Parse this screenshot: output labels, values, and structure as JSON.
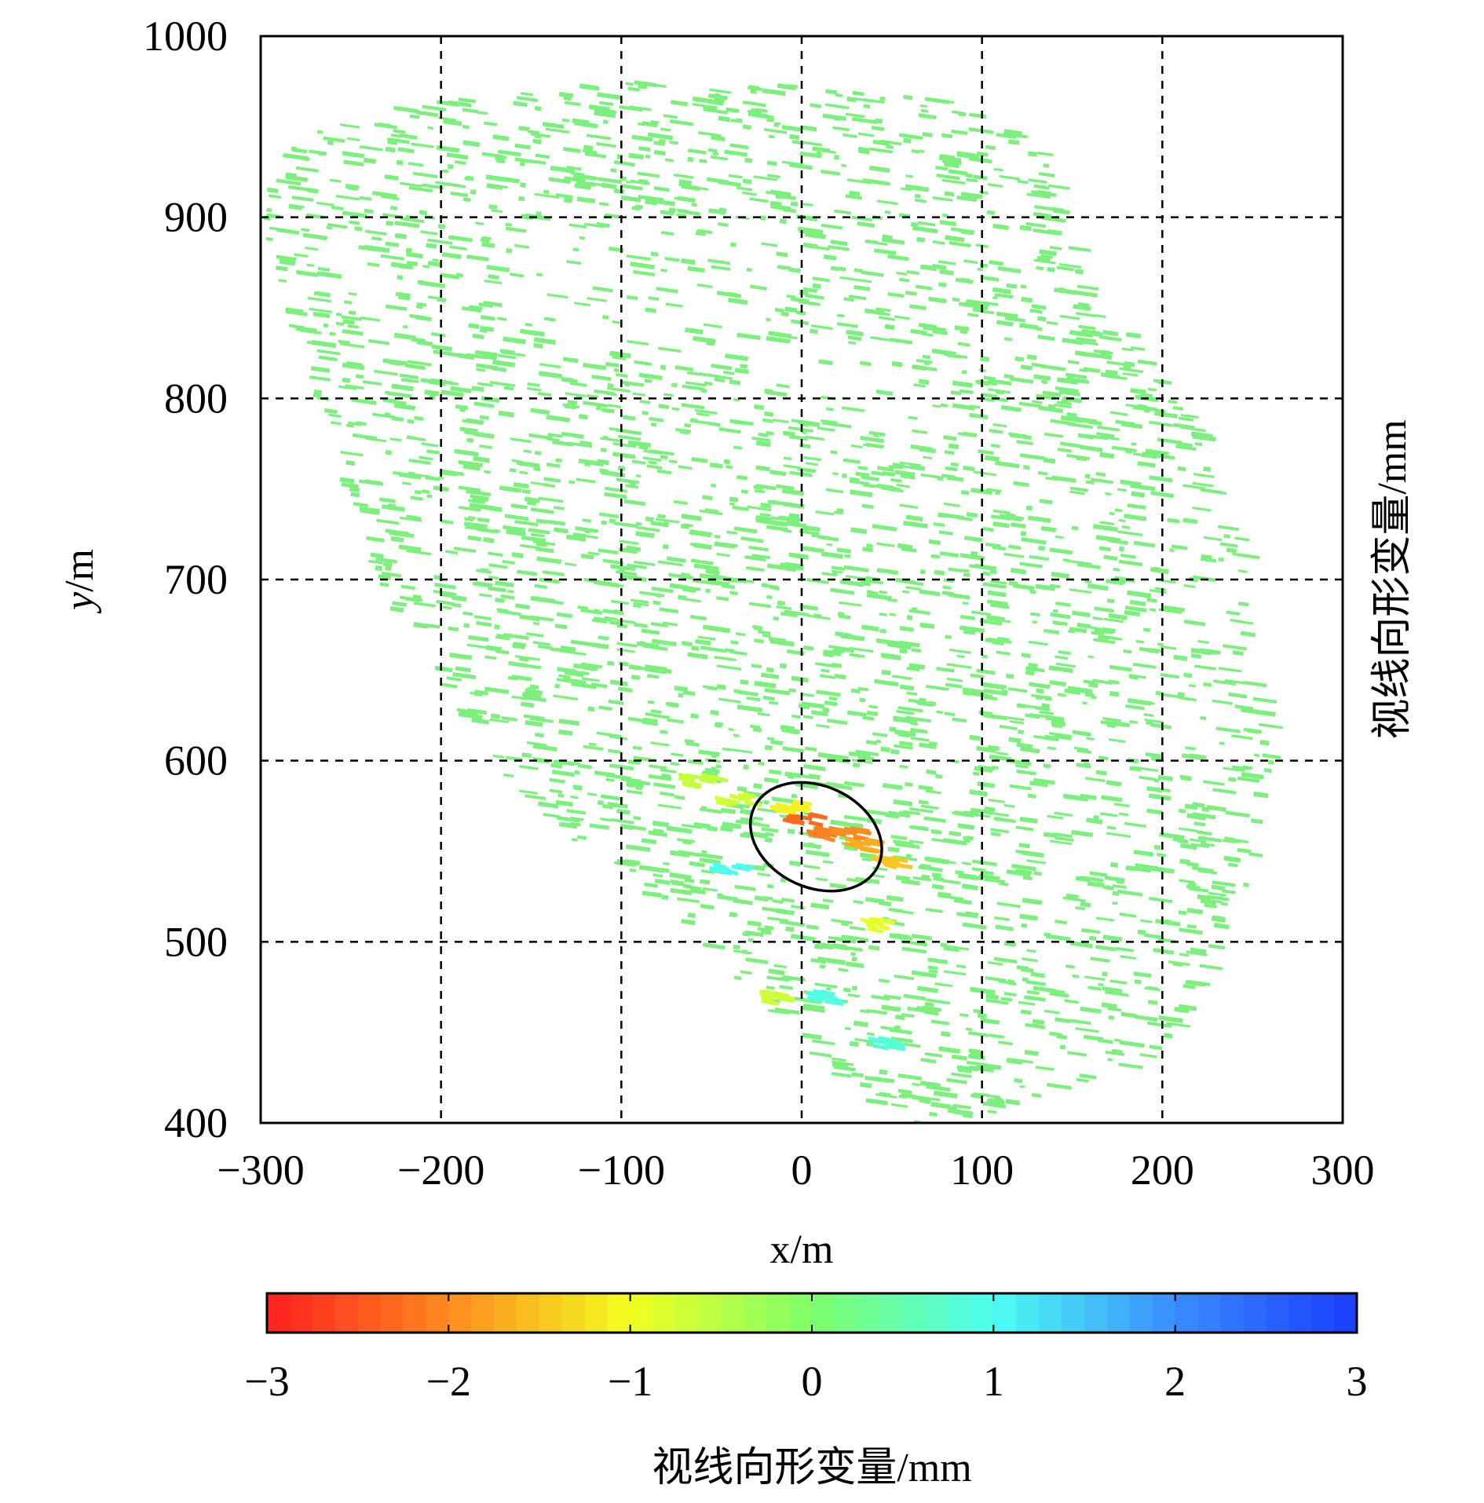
{
  "chart_data": {
    "type": "scatter",
    "xlabel": "x/m",
    "ylabel": "y/m",
    "xlim": [
      -300,
      300
    ],
    "ylim": [
      400,
      1000
    ],
    "xticks": [
      "−300",
      "−200",
      "−100",
      "0",
      "100",
      "200",
      "300"
    ],
    "yticks": [
      "400",
      "500",
      "600",
      "700",
      "800",
      "900",
      "1000"
    ],
    "grid": true,
    "right_label": "视线向形变量/mm",
    "colorbar": {
      "label": "视线向形变量/mm",
      "range": [
        -3,
        3
      ],
      "ticks": [
        "−3",
        "−2",
        "−1",
        "0",
        "1",
        "2",
        "3"
      ],
      "colormap": [
        "#ff1f1f",
        "#ff8a1f",
        "#f2ff1f",
        "#7dff6b",
        "#4dfff2",
        "#3a8cff",
        "#1a3dff"
      ]
    },
    "base_color": "#7cf07c",
    "annotation": {
      "shape": "ellipse",
      "center": [
        8,
        558
      ],
      "radius_x": 38,
      "radius_y": 28,
      "rotation_deg": 25
    },
    "series": [
      {
        "values": [
          {
            "x": -2,
            "y": 568,
            "v": -2.3
          },
          {
            "x": 8,
            "y": 562,
            "v": -2.1
          },
          {
            "x": 20,
            "y": 560,
            "v": -2.0
          },
          {
            "x": 30,
            "y": 554,
            "v": -1.7
          },
          {
            "x": 44,
            "y": 545,
            "v": -1.5
          },
          {
            "x": -10,
            "y": 575,
            "v": -1.1
          },
          {
            "x": -60,
            "y": 590,
            "v": -0.6
          },
          {
            "x": -40,
            "y": 580,
            "v": -0.7
          },
          {
            "x": -20,
            "y": 470,
            "v": -0.7
          },
          {
            "x": 40,
            "y": 510,
            "v": -0.9
          },
          {
            "x": -45,
            "y": 540,
            "v": 1.0
          },
          {
            "x": 10,
            "y": 470,
            "v": 0.9
          },
          {
            "x": 45,
            "y": 445,
            "v": 0.8
          }
        ]
      }
    ]
  }
}
